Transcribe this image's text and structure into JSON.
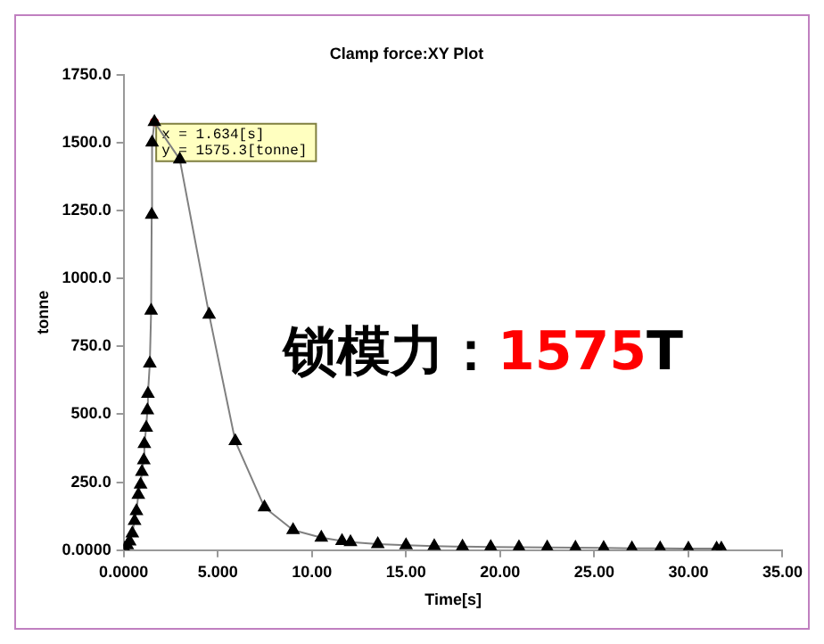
{
  "chart_data": {
    "type": "line",
    "title": "Clamp force:XY Plot",
    "xlabel": "Time[s]",
    "ylabel": "tonne",
    "x": [
      0.05,
      0.19,
      0.32,
      0.46,
      0.58,
      0.68,
      0.78,
      0.9,
      0.97,
      1.07,
      1.1,
      1.2,
      1.26,
      1.29,
      1.39,
      1.46,
      1.49,
      1.51,
      1.634,
      2.98,
      4.54,
      5.93,
      7.48,
      9.0,
      10.5,
      11.6,
      12.05,
      13.5,
      15.0,
      16.5,
      18.0,
      19.5,
      21.0,
      22.5,
      24.0,
      25.5,
      27.0,
      28.5,
      30.0,
      31.5,
      31.75
    ],
    "series": [
      {
        "color": "#808080",
        "values": [
          5,
          18,
          32,
          62,
          108,
          144,
          204,
          241,
          288,
          331,
          391,
          451,
          515,
          575,
          687,
          881,
          1234,
          1500,
          1575.3,
          1438,
          867,
          401,
          158,
          74,
          46,
          34,
          30,
          22,
          18,
          15,
          13,
          12,
          11,
          10,
          9,
          8,
          7,
          7,
          6,
          6,
          6
        ]
      }
    ],
    "xlim": [
      0,
      35
    ],
    "xticks": [
      {
        "value": 0,
        "label": "0.0000"
      },
      {
        "value": 5,
        "label": "5.000"
      },
      {
        "value": 10,
        "label": "10.00"
      },
      {
        "value": 15,
        "label": "15.00"
      },
      {
        "value": 20,
        "label": "20.00"
      },
      {
        "value": 25,
        "label": "25.00"
      },
      {
        "value": 30,
        "label": "30.00"
      },
      {
        "value": 35,
        "label": "35.00"
      }
    ],
    "ylim": [
      0,
      1750
    ],
    "yticks": [
      {
        "value": 0,
        "label": "0.0000"
      },
      {
        "value": 250,
        "label": "250.0"
      },
      {
        "value": 500,
        "label": "500.0"
      },
      {
        "value": 750,
        "label": "750.0"
      },
      {
        "value": 1000,
        "label": "1000.0"
      },
      {
        "value": 1250,
        "label": "1250.0"
      },
      {
        "value": 1500,
        "label": "1500.0"
      },
      {
        "value": 1750,
        "label": "1750.0"
      }
    ],
    "annotations": [
      {
        "text": "x = 1.634[s]",
        "x": 1.634,
        "y": 1575.3
      },
      {
        "text": "y = 1575.3[tonne]",
        "x": 1.634,
        "y": 1575.3
      },
      "锁模力：1575T"
    ],
    "marker": "triangle",
    "line_style": "solid",
    "grid": false,
    "legend": false
  }
}
